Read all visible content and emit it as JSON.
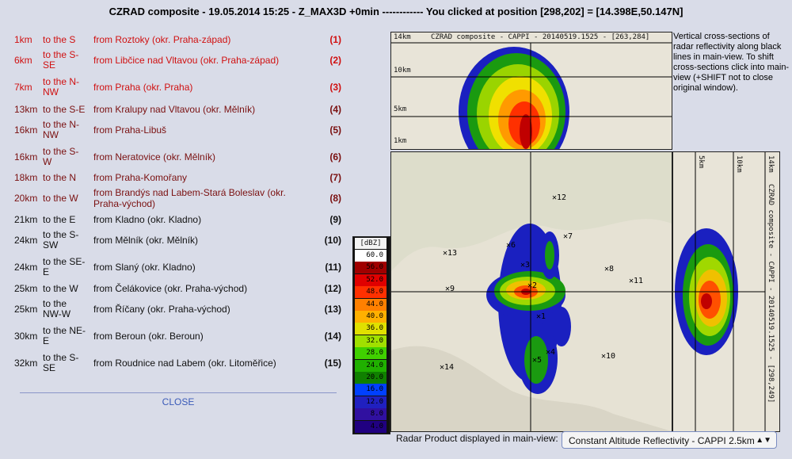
{
  "title": "CZRAD composite - 19.05.2014 15:25 - Z_MAX3D +0min ------------ You clicked at position [298,202] = [14.398E,50.147N]",
  "rows": [
    {
      "dist": "1km",
      "dir": "to the S",
      "from": "from Roztoky (okr. Praha-západ)",
      "num": "(1)",
      "color": "#d01010"
    },
    {
      "dist": "6km",
      "dir": "to the S-SE",
      "from": "from Libčice nad Vltavou (okr. Praha-západ)",
      "num": "(2)",
      "color": "#d01010"
    },
    {
      "dist": "7km",
      "dir": "to the N-NW",
      "from": "from Praha (okr. Praha)",
      "num": "(3)",
      "color": "#d01010"
    },
    {
      "dist": "13km",
      "dir": "to the S-E",
      "from": "from Kralupy nad Vltavou (okr. Mělník)",
      "num": "(4)",
      "color": "#7a1010"
    },
    {
      "dist": "16km",
      "dir": "to the N-NW",
      "from": "from Praha-Libuš",
      "num": "(5)",
      "color": "#7a1010"
    },
    {
      "dist": "16km",
      "dir": "to the S-W",
      "from": "from Neratovice (okr. Mělník)",
      "num": "(6)",
      "color": "#7a1010"
    },
    {
      "dist": "18km",
      "dir": "to the N",
      "from": "from Praha-Komořany",
      "num": "(7)",
      "color": "#7a1010"
    },
    {
      "dist": "20km",
      "dir": "to the W",
      "from": "from Brandýs nad Labem-Stará Boleslav (okr. Praha-východ)",
      "num": "(8)",
      "color": "#7a1010"
    },
    {
      "dist": "21km",
      "dir": "to the E",
      "from": "from Kladno (okr. Kladno)",
      "num": "(9)",
      "color": "#111111"
    },
    {
      "dist": "24km",
      "dir": "to the S-SW",
      "from": "from Mělník (okr. Mělník)",
      "num": "(10)",
      "color": "#111111"
    },
    {
      "dist": "24km",
      "dir": "to the SE-E",
      "from": "from Slaný (okr. Kladno)",
      "num": "(11)",
      "color": "#111111"
    },
    {
      "dist": "25km",
      "dir": "to the W",
      "from": "from Čelákovice (okr. Praha-východ)",
      "num": "(12)",
      "color": "#111111"
    },
    {
      "dist": "25km",
      "dir": "to the NW-W",
      "from": "from Říčany (okr. Praha-východ)",
      "num": "(13)",
      "color": "#111111"
    },
    {
      "dist": "30km",
      "dir": "to the NE-E",
      "from": "from Beroun (okr. Beroun)",
      "num": "(14)",
      "color": "#111111"
    },
    {
      "dist": "32km",
      "dir": "to the S-SE",
      "from": "from Roudnice nad Labem (okr. Litoměřice)",
      "num": "(15)",
      "color": "#111111"
    }
  ],
  "close_label": "CLOSE",
  "top_panel": {
    "title": "CZRAD composite - CAPPI - 20140519.1525 - [263,284]",
    "h14": "14km",
    "h10": "10km",
    "h5": "5km",
    "h1": "1km"
  },
  "side_panel": {
    "title": "CZRAD composite - CAPPI - 20140519.1525 - [298,249]",
    "h14": "14km",
    "h10": "10km",
    "h5": "5km"
  },
  "note": "Vertical cross-sections of radar reflectivity along black lines in main-view. To shift cross-sections click into main-view (+SHIFT not to close original window).",
  "legend": {
    "unit": "[dBZ]",
    "levels": [
      {
        "v": "60.0",
        "c": "#ffffff"
      },
      {
        "v": "56.0",
        "c": "#a00000"
      },
      {
        "v": "52.0",
        "c": "#e00000"
      },
      {
        "v": "48.0",
        "c": "#ff3000"
      },
      {
        "v": "44.0",
        "c": "#ff8000"
      },
      {
        "v": "40.0",
        "c": "#ffb000"
      },
      {
        "v": "36.0",
        "c": "#e0e000"
      },
      {
        "v": "32.0",
        "c": "#a0e000"
      },
      {
        "v": "28.0",
        "c": "#40d000"
      },
      {
        "v": "24.0",
        "c": "#20b000"
      },
      {
        "v": "20.0",
        "c": "#108000"
      },
      {
        "v": "16.0",
        "c": "#0040ff"
      },
      {
        "v": "12.0",
        "c": "#2020c0"
      },
      {
        "v": "8.0",
        "c": "#3010a0"
      },
      {
        "v": "4.0",
        "c": "#200080"
      }
    ]
  },
  "markers": [
    {
      "t": "12"
    },
    {
      "t": "7"
    },
    {
      "t": "13"
    },
    {
      "t": "6"
    },
    {
      "t": "3"
    },
    {
      "t": "8"
    },
    {
      "t": "11"
    },
    {
      "t": "9"
    },
    {
      "t": "2"
    },
    {
      "t": "1"
    },
    {
      "t": "4"
    },
    {
      "t": "5"
    },
    {
      "t": "10"
    },
    {
      "t": "14"
    }
  ],
  "bottom_label": "Radar Product displayed in main-view:",
  "select_value": "Constant Altitude Reflectivity - CAPPI 2.5km"
}
